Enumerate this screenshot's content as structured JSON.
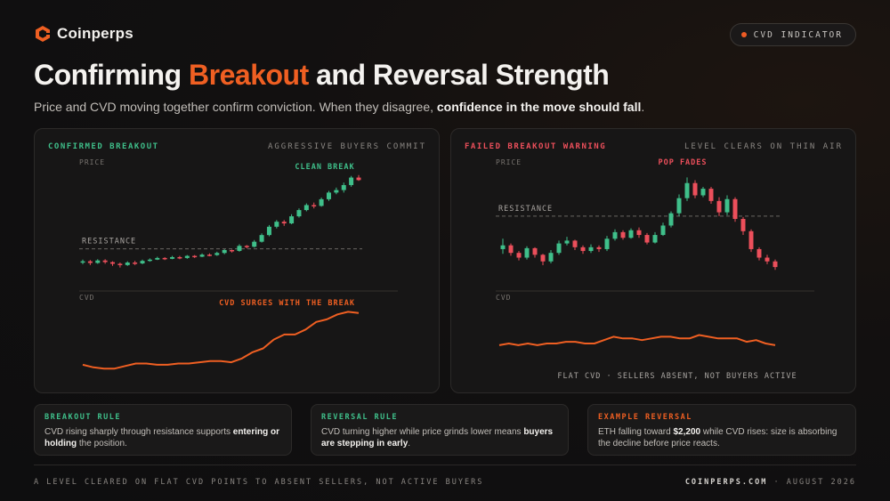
{
  "brand": {
    "name": "Coinperps"
  },
  "badge": {
    "label": "CVD INDICATOR"
  },
  "title": {
    "part1": "Confirming ",
    "accent": "Breakout",
    "part2": " and Reversal Strength"
  },
  "subtitle": {
    "text": "Price and CVD moving together confirm conviction. When they disagree, ",
    "bold": "confidence in the move should fall",
    "end": "."
  },
  "colors": {
    "accent": "#ef5f22",
    "bull": "#3fbf8a",
    "bear": "#ec4f5b",
    "cvd": "#ef5f22"
  },
  "panels": {
    "left": {
      "title": "CONFIRMED BREAKOUT",
      "tag": "AGGRESSIVE BUYERS COMMIT",
      "price_label": "PRICE",
      "cvd_label": "CVD",
      "resistance_label": "RESISTANCE",
      "price_annotation": "CLEAN BREAK",
      "cvd_annotation": "CVD SURGES WITH THE BREAK"
    },
    "right": {
      "title": "FAILED BREAKOUT WARNING",
      "tag": "LEVEL CLEARS ON THIN AIR",
      "price_label": "PRICE",
      "cvd_label": "CVD",
      "resistance_label": "RESISTANCE",
      "price_annotation": "POP FADES",
      "cvd_annotation": "FLAT CVD · SELLERS ABSENT, NOT BUYERS ACTIVE"
    }
  },
  "cards": [
    {
      "label": "BREAKOUT RULE",
      "text1": "CVD rising sharply through resistance supports ",
      "bold1": "entering or holding",
      "text2": " the position.",
      "bold2": "",
      "text3": "",
      "color": "#3fbf8a"
    },
    {
      "label": "REVERSAL RULE",
      "text1": "CVD turning higher while price grinds lower means ",
      "bold1": "buyers are stepping in early",
      "text2": ".",
      "bold2": "",
      "text3": "",
      "color": "#3fbf8a"
    },
    {
      "label": "EXAMPLE REVERSAL",
      "text1": "ETH falling toward ",
      "bold1": "$2,200",
      "text2": " while CVD rises: size is absorbing the decline before price reacts.",
      "bold2": "",
      "text3": "",
      "color": "#ef5f22"
    }
  ],
  "footer": {
    "left": "A LEVEL CLEARED ON FLAT CVD POINTS TO ABSENT SELLERS, NOT ACTIVE BUYERS",
    "site": "COINPERPS.COM",
    "sep": " · ",
    "date": "AUGUST 2026"
  },
  "chart_data": [
    {
      "type": "candlestick+line",
      "panel": "left",
      "candles": [
        [
          100.2,
          100.5,
          99.8,
          100.9
        ],
        [
          100.5,
          100.1,
          99.6,
          100.8
        ],
        [
          100.1,
          100.7,
          99.9,
          101.0
        ],
        [
          100.7,
          100.3,
          99.9,
          101.0
        ],
        [
          100.3,
          99.9,
          99.4,
          100.5
        ],
        [
          99.9,
          99.6,
          99.0,
          100.2
        ],
        [
          99.6,
          100.2,
          99.4,
          100.5
        ],
        [
          100.2,
          100.0,
          99.6,
          100.6
        ],
        [
          100.0,
          100.6,
          99.8,
          100.9
        ],
        [
          100.6,
          100.9,
          100.4,
          101.2
        ],
        [
          100.9,
          101.3,
          100.8,
          101.6
        ],
        [
          101.3,
          101.1,
          100.8,
          101.5
        ],
        [
          101.1,
          101.5,
          101.0,
          101.8
        ],
        [
          101.5,
          101.3,
          101.0,
          101.8
        ],
        [
          101.3,
          101.8,
          101.1,
          102.0
        ],
        [
          101.8,
          101.6,
          101.3,
          102.0
        ],
        [
          101.6,
          102.1,
          101.5,
          102.4
        ],
        [
          102.1,
          102.0,
          101.7,
          102.4
        ],
        [
          102.0,
          102.5,
          101.8,
          102.8
        ],
        [
          102.5,
          103.2,
          102.2,
          103.4
        ],
        [
          103.2,
          103.0,
          102.6,
          103.3
        ],
        [
          103.0,
          104.2,
          102.8,
          104.6
        ],
        [
          104.2,
          104.0,
          103.6,
          104.4
        ],
        [
          104.0,
          105.2,
          103.8,
          105.6
        ],
        [
          105.2,
          106.8,
          105.0,
          107.2
        ],
        [
          106.8,
          108.8,
          106.5,
          109.2
        ],
        [
          108.8,
          110.0,
          108.4,
          110.4
        ],
        [
          110.0,
          109.6,
          109.0,
          110.4
        ],
        [
          109.6,
          111.3,
          109.4,
          111.8
        ],
        [
          111.3,
          112.8,
          111.0,
          113.2
        ],
        [
          112.8,
          114.0,
          112.5,
          114.4
        ],
        [
          114.0,
          113.8,
          113.2,
          114.6
        ],
        [
          113.8,
          115.4,
          113.6,
          115.8
        ],
        [
          115.4,
          117.0,
          115.0,
          117.4
        ],
        [
          117.0,
          117.6,
          116.6,
          118.2
        ],
        [
          117.6,
          118.8,
          117.0,
          119.4
        ],
        [
          118.8,
          120.6,
          118.4,
          121.0
        ],
        [
          120.6,
          120.0,
          119.8,
          121.2
        ]
      ],
      "resistance": 103.5,
      "cvd": [
        100,
        98,
        97,
        97,
        99,
        101,
        101,
        100,
        100,
        101,
        101,
        102,
        103,
        103,
        102,
        105,
        110,
        113,
        120,
        124,
        124,
        128,
        134,
        136,
        140,
        142,
        141
      ],
      "ylabel": "PRICE",
      "cvd_label": "CVD"
    },
    {
      "type": "candlestick+line",
      "panel": "right",
      "candles": [
        [
          100.6,
          101.4,
          99.6,
          102.8
        ],
        [
          101.4,
          99.8,
          99.2,
          101.8
        ],
        [
          99.8,
          98.8,
          98.2,
          100.2
        ],
        [
          98.8,
          100.8,
          98.4,
          101.2
        ],
        [
          100.8,
          99.4,
          98.8,
          101.0
        ],
        [
          99.4,
          98.0,
          97.2,
          99.6
        ],
        [
          98.0,
          99.8,
          97.6,
          100.4
        ],
        [
          99.8,
          101.8,
          99.4,
          102.4
        ],
        [
          101.8,
          102.4,
          101.4,
          103.2
        ],
        [
          102.4,
          101.0,
          100.4,
          102.6
        ],
        [
          101.0,
          100.2,
          99.6,
          101.4
        ],
        [
          100.2,
          101.0,
          99.8,
          101.6
        ],
        [
          101.0,
          100.6,
          100.0,
          101.4
        ],
        [
          100.6,
          102.8,
          100.2,
          103.4
        ],
        [
          102.8,
          104.2,
          102.4,
          104.8
        ],
        [
          104.2,
          103.0,
          102.6,
          104.6
        ],
        [
          103.0,
          104.6,
          102.8,
          105.0
        ],
        [
          104.6,
          103.6,
          103.0,
          105.2
        ],
        [
          103.6,
          102.0,
          101.6,
          104.0
        ],
        [
          102.0,
          103.6,
          101.8,
          104.2
        ],
        [
          103.6,
          105.6,
          103.4,
          106.2
        ],
        [
          105.6,
          108.2,
          105.2,
          108.6
        ],
        [
          108.2,
          111.4,
          107.6,
          112.2
        ],
        [
          111.4,
          114.6,
          110.8,
          115.8
        ],
        [
          114.6,
          112.0,
          111.4,
          115.2
        ],
        [
          112.0,
          113.4,
          111.6,
          113.8
        ],
        [
          113.4,
          110.8,
          110.2,
          113.8
        ],
        [
          110.8,
          108.4,
          107.6,
          111.6
        ],
        [
          108.4,
          111.2,
          107.8,
          112.0
        ],
        [
          111.2,
          107.0,
          106.4,
          111.6
        ],
        [
          107.0,
          104.4,
          103.6,
          107.4
        ],
        [
          104.4,
          100.6,
          100.0,
          104.8
        ],
        [
          100.6,
          98.8,
          98.2,
          101.0
        ],
        [
          98.8,
          98.0,
          97.4,
          99.4
        ],
        [
          98.0,
          96.8,
          96.2,
          98.4
        ]
      ],
      "resistance": 107.6,
      "cvd": [
        100,
        101,
        100,
        101,
        100,
        101,
        101,
        102,
        102,
        101,
        101,
        103,
        105,
        104,
        104,
        103,
        104,
        105,
        105,
        104,
        104,
        106,
        105,
        104,
        104,
        104,
        102,
        103,
        101,
        100
      ],
      "ylabel": "PRICE",
      "cvd_label": "CVD"
    }
  ]
}
